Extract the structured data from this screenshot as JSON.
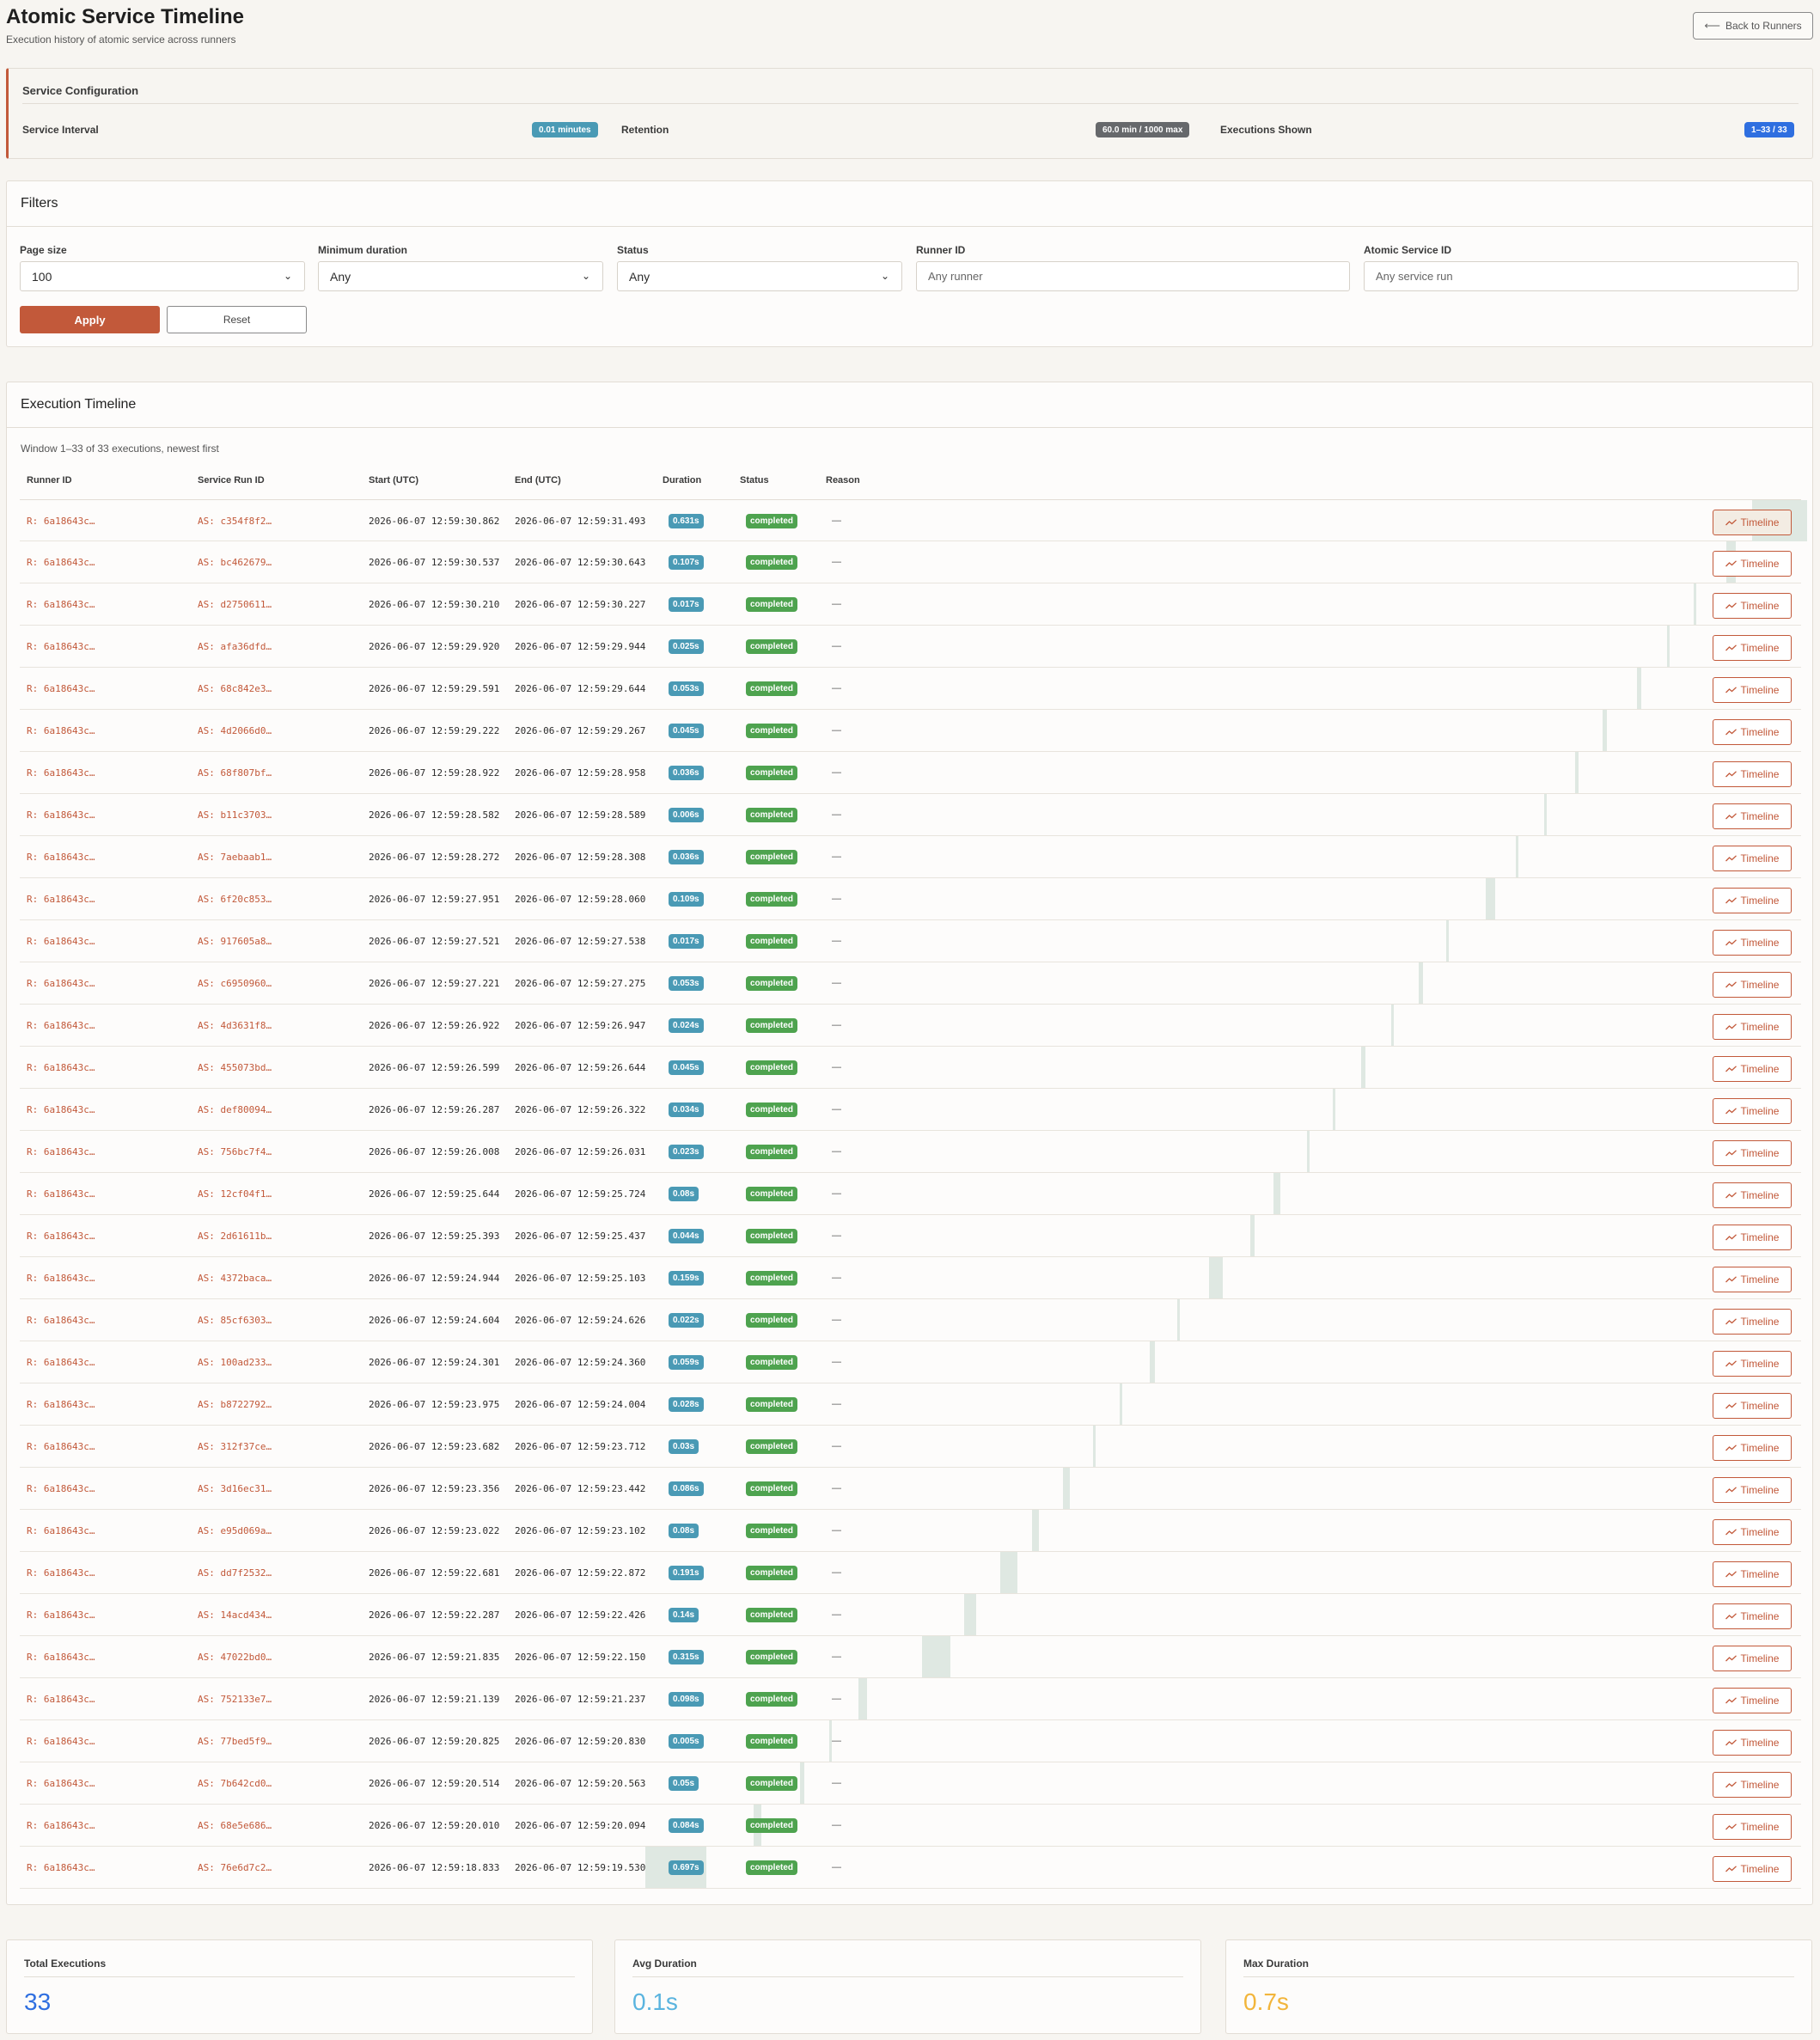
{
  "header": {
    "title": "Atomic Service Timeline",
    "subtitle": "Execution history of atomic service across runners",
    "back_label": "Back to Runners"
  },
  "config": {
    "title": "Service Configuration",
    "interval_label": "Service Interval",
    "interval_value": "0.01 minutes",
    "retention_label": "Retention",
    "retention_value": "60.0 min / 1000 max",
    "shown_label": "Executions Shown",
    "shown_value": "1–33 / 33"
  },
  "filters": {
    "title": "Filters",
    "page_size_label": "Page size",
    "page_size_value": "100",
    "min_duration_label": "Minimum duration",
    "min_duration_value": "Any",
    "status_label": "Status",
    "status_value": "Any",
    "runner_label": "Runner ID",
    "runner_placeholder": "Any runner",
    "service_label": "Atomic Service ID",
    "service_placeholder": "Any service run",
    "apply_label": "Apply",
    "reset_label": "Reset"
  },
  "timeline": {
    "title": "Execution Timeline",
    "info": "Window 1–33 of 33 executions, newest first",
    "columns": [
      "Runner ID",
      "Service Run ID",
      "Start (UTC)",
      "End (UTC)",
      "Duration",
      "Status",
      "Reason"
    ],
    "button_label": "Timeline",
    "rows": [
      {
        "runner": "R: 6a18643c…",
        "service": "AS: c354f8f2…",
        "start": "2026-06-07 12:59:30.862",
        "end": "2026-06-07 12:59:31.493",
        "duration": "0.631s",
        "status": "completed",
        "reason": "—",
        "offset": 97.25,
        "dur_s": 0.631
      },
      {
        "runner": "R: 6a18643c…",
        "service": "AS: bc462679…",
        "start": "2026-06-07 12:59:30.537",
        "end": "2026-06-07 12:59:30.643",
        "duration": "0.107s",
        "status": "completed",
        "reason": "—",
        "offset": 95.8,
        "dur_s": 0.107
      },
      {
        "runner": "R: 6a18643c…",
        "service": "AS: d2750611…",
        "start": "2026-06-07 12:59:30.210",
        "end": "2026-06-07 12:59:30.227",
        "duration": "0.017s",
        "status": "completed",
        "reason": "—",
        "offset": 93.98,
        "dur_s": 0.017
      },
      {
        "runner": "R: 6a18643c…",
        "service": "AS: afa36dfd…",
        "start": "2026-06-07 12:59:29.920",
        "end": "2026-06-07 12:59:29.944",
        "duration": "0.025s",
        "status": "completed",
        "reason": "—",
        "offset": 92.49,
        "dur_s": 0.025
      },
      {
        "runner": "R: 6a18643c…",
        "service": "AS: 68c842e3…",
        "start": "2026-06-07 12:59:29.591",
        "end": "2026-06-07 12:59:29.644",
        "duration": "0.053s",
        "status": "completed",
        "reason": "—",
        "offset": 90.79,
        "dur_s": 0.053
      },
      {
        "runner": "R: 6a18643c…",
        "service": "AS: 4d2066d0…",
        "start": "2026-06-07 12:59:29.222",
        "end": "2026-06-07 12:59:29.267",
        "duration": "0.045s",
        "status": "completed",
        "reason": "—",
        "offset": 88.88,
        "dur_s": 0.045
      },
      {
        "runner": "R: 6a18643c…",
        "service": "AS: 68f807bf…",
        "start": "2026-06-07 12:59:28.922",
        "end": "2026-06-07 12:59:28.958",
        "duration": "0.036s",
        "status": "completed",
        "reason": "—",
        "offset": 87.33,
        "dur_s": 0.036
      },
      {
        "runner": "R: 6a18643c…",
        "service": "AS: b11c3703…",
        "start": "2026-06-07 12:59:28.582",
        "end": "2026-06-07 12:59:28.589",
        "duration": "0.006s",
        "status": "completed",
        "reason": "—",
        "offset": 85.57,
        "dur_s": 0.006
      },
      {
        "runner": "R: 6a18643c…",
        "service": "AS: 7aebaab1…",
        "start": "2026-06-07 12:59:28.272",
        "end": "2026-06-07 12:59:28.308",
        "duration": "0.036s",
        "status": "completed",
        "reason": "—",
        "offset": 83.97,
        "dur_s": 0.036
      },
      {
        "runner": "R: 6a18643c…",
        "service": "AS: 6f20c853…",
        "start": "2026-06-07 12:59:27.951",
        "end": "2026-06-07 12:59:28.060",
        "duration": "0.109s",
        "status": "completed",
        "reason": "—",
        "offset": 82.31,
        "dur_s": 0.109
      },
      {
        "runner": "R: 6a18643c…",
        "service": "AS: 917605a8…",
        "start": "2026-06-07 12:59:27.521",
        "end": "2026-06-07 12:59:27.538",
        "duration": "0.017s",
        "status": "completed",
        "reason": "—",
        "offset": 80.09,
        "dur_s": 0.017
      },
      {
        "runner": "R: 6a18643c…",
        "service": "AS: c6950960…",
        "start": "2026-06-07 12:59:27.221",
        "end": "2026-06-07 12:59:27.275",
        "duration": "0.053s",
        "status": "completed",
        "reason": "—",
        "offset": 78.53,
        "dur_s": 0.053
      },
      {
        "runner": "R: 6a18643c…",
        "service": "AS: 4d3631f8…",
        "start": "2026-06-07 12:59:26.922",
        "end": "2026-06-07 12:59:26.947",
        "duration": "0.024s",
        "status": "completed",
        "reason": "—",
        "offset": 76.99,
        "dur_s": 0.024
      },
      {
        "runner": "R: 6a18643c…",
        "service": "AS: 455073bd…",
        "start": "2026-06-07 12:59:26.599",
        "end": "2026-06-07 12:59:26.644",
        "duration": "0.045s",
        "status": "completed",
        "reason": "—",
        "offset": 75.32,
        "dur_s": 0.045
      },
      {
        "runner": "R: 6a18643c…",
        "service": "AS: def80094…",
        "start": "2026-06-07 12:59:26.287",
        "end": "2026-06-07 12:59:26.322",
        "duration": "0.034s",
        "status": "completed",
        "reason": "—",
        "offset": 73.7,
        "dur_s": 0.034
      },
      {
        "runner": "R: 6a18643c…",
        "service": "AS: 756bc7f4…",
        "start": "2026-06-07 12:59:26.008",
        "end": "2026-06-07 12:59:26.031",
        "duration": "0.023s",
        "status": "completed",
        "reason": "—",
        "offset": 72.26,
        "dur_s": 0.023
      },
      {
        "runner": "R: 6a18643c…",
        "service": "AS: 12cf04f1…",
        "start": "2026-06-07 12:59:25.644",
        "end": "2026-06-07 12:59:25.724",
        "duration": "0.08s",
        "status": "completed",
        "reason": "—",
        "offset": 70.38,
        "dur_s": 0.08
      },
      {
        "runner": "R: 6a18643c…",
        "service": "AS: 2d61611b…",
        "start": "2026-06-07 12:59:25.393",
        "end": "2026-06-07 12:59:25.437",
        "duration": "0.044s",
        "status": "completed",
        "reason": "—",
        "offset": 69.08,
        "dur_s": 0.044
      },
      {
        "runner": "R: 6a18643c…",
        "service": "AS: 4372baca…",
        "start": "2026-06-07 12:59:24.944",
        "end": "2026-06-07 12:59:25.103",
        "duration": "0.159s",
        "status": "completed",
        "reason": "—",
        "offset": 66.76,
        "dur_s": 0.159
      },
      {
        "runner": "R: 6a18643c…",
        "service": "AS: 85cf6303…",
        "start": "2026-06-07 12:59:24.604",
        "end": "2026-06-07 12:59:24.626",
        "duration": "0.022s",
        "status": "completed",
        "reason": "—",
        "offset": 65.0,
        "dur_s": 0.022
      },
      {
        "runner": "R: 6a18643c…",
        "service": "AS: 100ad233…",
        "start": "2026-06-07 12:59:24.301",
        "end": "2026-06-07 12:59:24.360",
        "duration": "0.059s",
        "status": "completed",
        "reason": "—",
        "offset": 63.43,
        "dur_s": 0.059
      },
      {
        "runner": "R: 6a18643c…",
        "service": "AS: b8722792…",
        "start": "2026-06-07 12:59:23.975",
        "end": "2026-06-07 12:59:24.004",
        "duration": "0.028s",
        "status": "completed",
        "reason": "—",
        "offset": 61.75,
        "dur_s": 0.028
      },
      {
        "runner": "R: 6a18643c…",
        "service": "AS: 312f37ce…",
        "start": "2026-06-07 12:59:23.682",
        "end": "2026-06-07 12:59:23.712",
        "duration": "0.03s",
        "status": "completed",
        "reason": "—",
        "offset": 60.23,
        "dur_s": 0.03
      },
      {
        "runner": "R: 6a18643c…",
        "service": "AS: 3d16ec31…",
        "start": "2026-06-07 12:59:23.356",
        "end": "2026-06-07 12:59:23.442",
        "duration": "0.086s",
        "status": "completed",
        "reason": "—",
        "offset": 58.54,
        "dur_s": 0.086
      },
      {
        "runner": "R: 6a18643c…",
        "service": "AS: e95d069a…",
        "start": "2026-06-07 12:59:23.022",
        "end": "2026-06-07 12:59:23.102",
        "duration": "0.08s",
        "status": "completed",
        "reason": "—",
        "offset": 56.82,
        "dur_s": 0.08
      },
      {
        "runner": "R: 6a18643c…",
        "service": "AS: dd7f2532…",
        "start": "2026-06-07 12:59:22.681",
        "end": "2026-06-07 12:59:22.872",
        "duration": "0.191s",
        "status": "completed",
        "reason": "—",
        "offset": 55.05,
        "dur_s": 0.191
      },
      {
        "runner": "R: 6a18643c…",
        "service": "AS: 14acd434…",
        "start": "2026-06-07 12:59:22.287",
        "end": "2026-06-07 12:59:22.426",
        "duration": "0.14s",
        "status": "completed",
        "reason": "—",
        "offset": 53.01,
        "dur_s": 0.14
      },
      {
        "runner": "R: 6a18643c…",
        "service": "AS: 47022bd0…",
        "start": "2026-06-07 12:59:21.835",
        "end": "2026-06-07 12:59:22.150",
        "duration": "0.315s",
        "status": "completed",
        "reason": "—",
        "offset": 50.67,
        "dur_s": 0.315
      },
      {
        "runner": "R: 6a18643c…",
        "service": "AS: 752133e7…",
        "start": "2026-06-07 12:59:21.139",
        "end": "2026-06-07 12:59:21.237",
        "duration": "0.098s",
        "status": "completed",
        "reason": "—",
        "offset": 47.06,
        "dur_s": 0.098
      },
      {
        "runner": "R: 6a18643c…",
        "service": "AS: 77bed5f9…",
        "start": "2026-06-07 12:59:20.825",
        "end": "2026-06-07 12:59:20.830",
        "duration": "0.005s",
        "status": "completed",
        "reason": "—",
        "offset": 45.44,
        "dur_s": 0.005
      },
      {
        "runner": "R: 6a18643c…",
        "service": "AS: 7b642cd0…",
        "start": "2026-06-07 12:59:20.514",
        "end": "2026-06-07 12:59:20.563",
        "duration": "0.05s",
        "status": "completed",
        "reason": "—",
        "offset": 43.82,
        "dur_s": 0.05
      },
      {
        "runner": "R: 6a18643c…",
        "service": "AS: 68e5e686…",
        "start": "2026-06-07 12:59:20.010",
        "end": "2026-06-07 12:59:20.094",
        "duration": "0.084s",
        "status": "completed",
        "reason": "—",
        "offset": 41.21,
        "dur_s": 0.084
      },
      {
        "runner": "R: 6a18643c…",
        "service": "AS: 76e6d7c2…",
        "start": "2026-06-07 12:59:18.833",
        "end": "2026-06-07 12:59:19.530",
        "duration": "0.697s",
        "status": "completed",
        "reason": "—",
        "offset": 35.11,
        "dur_s": 0.697
      }
    ]
  },
  "stats": {
    "total_label": "Total Executions",
    "total_value": "33",
    "total_color": "#2f6fe0",
    "avg_label": "Avg Duration",
    "avg_value": "0.1s",
    "avg_color": "#5ab4df",
    "max_label": "Max Duration",
    "max_value": "0.7s",
    "max_color": "#f2b53b"
  }
}
